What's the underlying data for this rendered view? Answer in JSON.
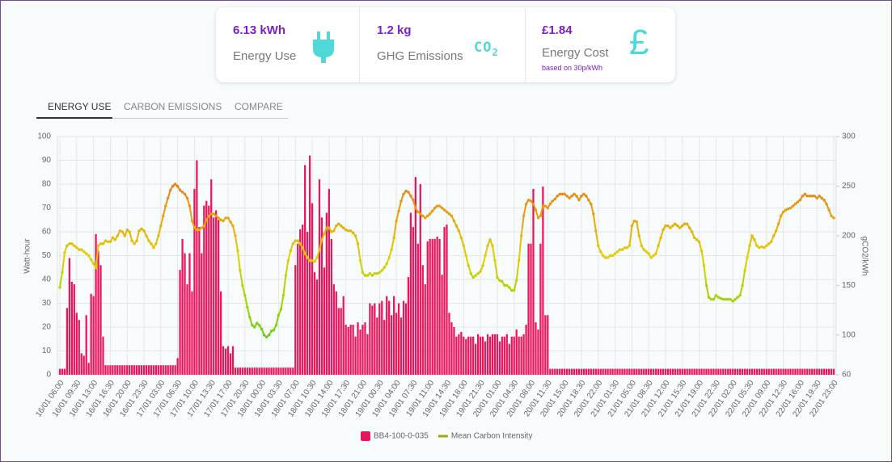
{
  "summary": [
    {
      "value": "6.13 kWh",
      "label": "Energy Use"
    },
    {
      "value": "1.2 kg",
      "label": "GHG Emissions",
      "icon_main": "CO",
      "icon_sub": "2"
    },
    {
      "value": "£1.84",
      "label": "Energy Cost",
      "note": "based on 30p/kWh",
      "icon": "£"
    }
  ],
  "tabs": [
    "ENERGY USE",
    "CARBON EMISSIONS",
    "COMPARE"
  ],
  "active_tab": 0,
  "chart_data": {
    "type": "bar_line",
    "ylabel": "Watt-hour",
    "y2label": "gCO2/kWh",
    "categories": [
      "16/01 06:00",
      null,
      null,
      null,
      null,
      null,
      null,
      "16/01 09:30",
      null,
      null,
      null,
      null,
      null,
      null,
      "16/01 13:00",
      null,
      null,
      null,
      null,
      null,
      null,
      "16/01 16:30",
      null,
      null,
      null,
      null,
      null,
      null,
      "16/01 20:00",
      null,
      null,
      null,
      null,
      null,
      null,
      "16/01 23:30",
      null,
      null,
      null,
      null,
      null,
      null,
      "17/01 03:00",
      null,
      null,
      null,
      null,
      null,
      null,
      "17/01 06:30",
      null,
      null,
      null,
      null,
      null,
      null,
      "17/01 10:00",
      null,
      null,
      null,
      null,
      null,
      null,
      "17/01 13:30",
      null,
      null,
      null,
      null,
      null,
      null,
      "17/01 17:00",
      null,
      null,
      null,
      null,
      null,
      null,
      "17/01 20:30",
      null,
      null,
      null,
      null,
      null,
      null,
      "18/01 00:00",
      null,
      null,
      null,
      null,
      null,
      null,
      "18/01 03:30",
      null,
      null,
      null,
      null,
      null,
      null,
      "18/01 07:00",
      null,
      null,
      null,
      null,
      null,
      null,
      "18/01 10:30",
      null,
      null,
      null,
      null,
      null,
      null,
      "18/01 14:00",
      null,
      null,
      null,
      null,
      null,
      null,
      "18/01 17:30",
      null,
      null,
      null,
      null,
      null,
      null,
      "18/01 21:00",
      null,
      null,
      null,
      null,
      null,
      null,
      "19/01 00:30",
      null,
      null,
      null,
      null,
      null,
      null,
      "19/01 04:00",
      null,
      null,
      null,
      null,
      null,
      null,
      "19/01 07:30",
      null,
      null,
      null,
      null,
      null,
      null,
      "19/01 11:00",
      null,
      null,
      null,
      null,
      null,
      null,
      "19/01 14:30",
      null,
      null,
      null,
      null,
      null,
      null,
      "19/01 18:00",
      null,
      null,
      null,
      null,
      null,
      null,
      "19/01 21:30",
      null,
      null,
      null,
      null,
      null,
      null,
      "20/01 01:00",
      null,
      null,
      null,
      null,
      null,
      null,
      "20/01 04:30",
      null,
      null,
      null,
      null,
      null,
      null,
      "20/01 08:00",
      null,
      null,
      null,
      null,
      null,
      null,
      "20/01 11:30",
      null,
      null,
      null,
      null,
      null,
      null,
      "20/01 15:00",
      null,
      null,
      null,
      null,
      null,
      null,
      "20/01 18:30",
      null,
      null,
      null,
      null,
      null,
      null,
      "20/01 22:00",
      null,
      null,
      null,
      null,
      null,
      null,
      "21/01 01:30",
      null,
      null,
      null,
      null,
      null,
      null,
      "21/01 05:00",
      null,
      null,
      null,
      null,
      null,
      null,
      "21/01 08:30",
      null,
      null,
      null,
      null,
      null,
      null,
      "21/01 12:00",
      null,
      null,
      null,
      null,
      null,
      null,
      "21/01 15:30",
      null,
      null,
      null,
      null,
      null,
      null,
      "21/01 19:00",
      null,
      null,
      null,
      null,
      null,
      null,
      "21/01 22:30",
      null,
      null,
      null,
      null,
      null,
      null,
      "22/01 02:00",
      null,
      null,
      null,
      null,
      null,
      null,
      "22/01 05:30",
      null,
      null,
      null,
      null,
      null,
      null,
      "22/01 09:00",
      null,
      null,
      null,
      null,
      null,
      null,
      "22/01 12:30",
      null,
      null,
      null,
      null,
      null,
      null,
      "22/01 16:00",
      null,
      null,
      null,
      null,
      null,
      null,
      "22/01 19:30",
      null,
      null,
      null,
      null,
      null,
      null,
      "22/01 23:00"
    ],
    "series": [
      {
        "name": "BB4-100-0-035",
        "type": "bar",
        "color": "#e8175d",
        "values": [
          2.5,
          2.5,
          2.5,
          28,
          49,
          39,
          38,
          26,
          23,
          9,
          8,
          25,
          5,
          34,
          33,
          59,
          52,
          46,
          16,
          4,
          4,
          4,
          4,
          4,
          4,
          4,
          4,
          4,
          4,
          4,
          4,
          4,
          4,
          4,
          4,
          4,
          4,
          4,
          4,
          4,
          4,
          4,
          4,
          4,
          4,
          4,
          4,
          4,
          4,
          7,
          44,
          57,
          51,
          38,
          51,
          35,
          78,
          90,
          62,
          51,
          71,
          73,
          71,
          82,
          66,
          69,
          65,
          35,
          12,
          11,
          12,
          9,
          12,
          3,
          3,
          3,
          3,
          3,
          3,
          3,
          3,
          3,
          3,
          3,
          3,
          3,
          3,
          3,
          3,
          3,
          3,
          3,
          3,
          3,
          3,
          3,
          3,
          3,
          46,
          55,
          61,
          63,
          88,
          60,
          92,
          72,
          43,
          40,
          82,
          66,
          45,
          68,
          78,
          57,
          38,
          35,
          28,
          28,
          33,
          21,
          20,
          21,
          21,
          16,
          22,
          19,
          21,
          22,
          17,
          30,
          29,
          30,
          24,
          30,
          31,
          23,
          33,
          31,
          25,
          33,
          26,
          30,
          24,
          31,
          30,
          41,
          68,
          62,
          83,
          55,
          80,
          46,
          38,
          56,
          57,
          57,
          57,
          58,
          57,
          42,
          62,
          63,
          26,
          22,
          20,
          16,
          17,
          18,
          16,
          15,
          16,
          16,
          16,
          13,
          17,
          16,
          16,
          14,
          17,
          16,
          17,
          17,
          17,
          14,
          16,
          16,
          17,
          13,
          16,
          16,
          19,
          16,
          16,
          17,
          21,
          55,
          55,
          78,
          22,
          19,
          55,
          79,
          25,
          25,
          2.5,
          2.5,
          2.5,
          2.5,
          2.5,
          2.5,
          2.5,
          2.5,
          2.5,
          2.5,
          2.5,
          2.5,
          2.5,
          2.5,
          2.5,
          2.5,
          2.5,
          2.5,
          2.5,
          2.5,
          2.5,
          2.5,
          2.5,
          2.5,
          2.5,
          2.5,
          2.5,
          2.5,
          2.5,
          2.5,
          2.5,
          2.5,
          2.5,
          2.5,
          2.5,
          2.5,
          2.5,
          2.5,
          2.5,
          2.5,
          2.5,
          2.5,
          2.5,
          2.5,
          2.5,
          2.5,
          2.5,
          2.5,
          2.5,
          2.5,
          2.5,
          2.5,
          2.5,
          2.5,
          2.5,
          2.5,
          2.5,
          2.5,
          2.5,
          2.5,
          2.5,
          2.5,
          2.5,
          2.5,
          2.5,
          2.5,
          2.5,
          2.5,
          2.5,
          2.5,
          2.5,
          2.5,
          2.5,
          2.5,
          2.5,
          2.5,
          2.5,
          2.5,
          2.5,
          2.5,
          2.5,
          2.5,
          2.5,
          2.5,
          2.5,
          2.5,
          2.5,
          2.5,
          2.5,
          2.5,
          2.5,
          2.5,
          2.5,
          2.5,
          2.5,
          2.5,
          2.5,
          2.5,
          2.5,
          2.5,
          2.5,
          2.5,
          2.5,
          2.5,
          2.5,
          2.5,
          2.5,
          2.5,
          2.5,
          2.5,
          2.5,
          2.5,
          2.5,
          2.5,
          2.5,
          2.5,
          2.5,
          2.5,
          2.5
        ]
      },
      {
        "name": "Mean Carbon Intensity",
        "type": "line",
        "axis": "y2",
        "color": "#a6a600",
        "color_scale": [
          "#1fbf3f",
          "#8fd400",
          "#e0d000",
          "#ea8c10",
          "#e05a00"
        ],
        "values": [
          148,
          163,
          183,
          190,
          192,
          192,
          190,
          188,
          186,
          186,
          184,
          182,
          180,
          176,
          172,
          168,
          190,
          192,
          192,
          195,
          194,
          194,
          198,
          196,
          200,
          205,
          204,
          200,
          206,
          204,
          195,
          192,
          195,
          205,
          207,
          205,
          200,
          195,
          192,
          188,
          192,
          200,
          210,
          220,
          230,
          238,
          246,
          250,
          252,
          250,
          246,
          244,
          242,
          238,
          230,
          215,
          208,
          206,
          206,
          208,
          210,
          216,
          220,
          222,
          222,
          220,
          218,
          216,
          215,
          218,
          218,
          214,
          210,
          200,
          185,
          165,
          150,
          140,
          128,
          118,
          110,
          108,
          112,
          110,
          106,
          100,
          98,
          100,
          104,
          105,
          110,
          120,
          126,
          140,
          160,
          175,
          185,
          192,
          195,
          195,
          192,
          188,
          182,
          178,
          175,
          175,
          174,
          178,
          186,
          196,
          202,
          208,
          208,
          204,
          205,
          210,
          212,
          210,
          208,
          206,
          205,
          205,
          203,
          200,
          192,
          175,
          163,
          160,
          160,
          162,
          160,
          162,
          162,
          163,
          165,
          168,
          172,
          178,
          186,
          198,
          215,
          225,
          235,
          242,
          245,
          244,
          240,
          236,
          228,
          224,
          222,
          220,
          218,
          220,
          222,
          225,
          228,
          230,
          230,
          228,
          226,
          224,
          222,
          220,
          215,
          210,
          205,
          198,
          190,
          180,
          170,
          162,
          158,
          160,
          162,
          164,
          170,
          180,
          190,
          196,
          190,
          175,
          158,
          155,
          154,
          150,
          150,
          148,
          145,
          145,
          155,
          175,
          200,
          220,
          232,
          236,
          235,
          232,
          226,
          218,
          220,
          230,
          230,
          228,
          232,
          235,
          237,
          240,
          242,
          242,
          242,
          240,
          238,
          240,
          242,
          240,
          236,
          240,
          242,
          240,
          236,
          232,
          222,
          205,
          190,
          184,
          180,
          178,
          178,
          180,
          180,
          182,
          184,
          186,
          186,
          188,
          188,
          190,
          210,
          215,
          214,
          200,
          190,
          186,
          184,
          182,
          178,
          180,
          182,
          190,
          198,
          206,
          210,
          210,
          208,
          210,
          212,
          210,
          208,
          210,
          212,
          212,
          208,
          204,
          198,
          196,
          194,
          185,
          170,
          150,
          138,
          136,
          136,
          140,
          138,
          137,
          136,
          136,
          136,
          136,
          134,
          136,
          138,
          140,
          150,
          165,
          178,
          190,
          200,
          196,
          190,
          188,
          189,
          188,
          190,
          192,
          194,
          200,
          205,
          212,
          220,
          224,
          226,
          227,
          228,
          230,
          232,
          234,
          236,
          240,
          242,
          240,
          240,
          240,
          240,
          238,
          240,
          238,
          236,
          232,
          226,
          220,
          218
        ]
      }
    ],
    "ylim": [
      0,
      100
    ],
    "yticks": [
      0,
      10,
      20,
      30,
      40,
      50,
      60,
      70,
      80,
      90,
      100
    ],
    "y2lim": [
      60,
      300
    ],
    "y2ticks": [
      60,
      100,
      150,
      200,
      250,
      300
    ],
    "grid": true,
    "legend": "bottom"
  }
}
